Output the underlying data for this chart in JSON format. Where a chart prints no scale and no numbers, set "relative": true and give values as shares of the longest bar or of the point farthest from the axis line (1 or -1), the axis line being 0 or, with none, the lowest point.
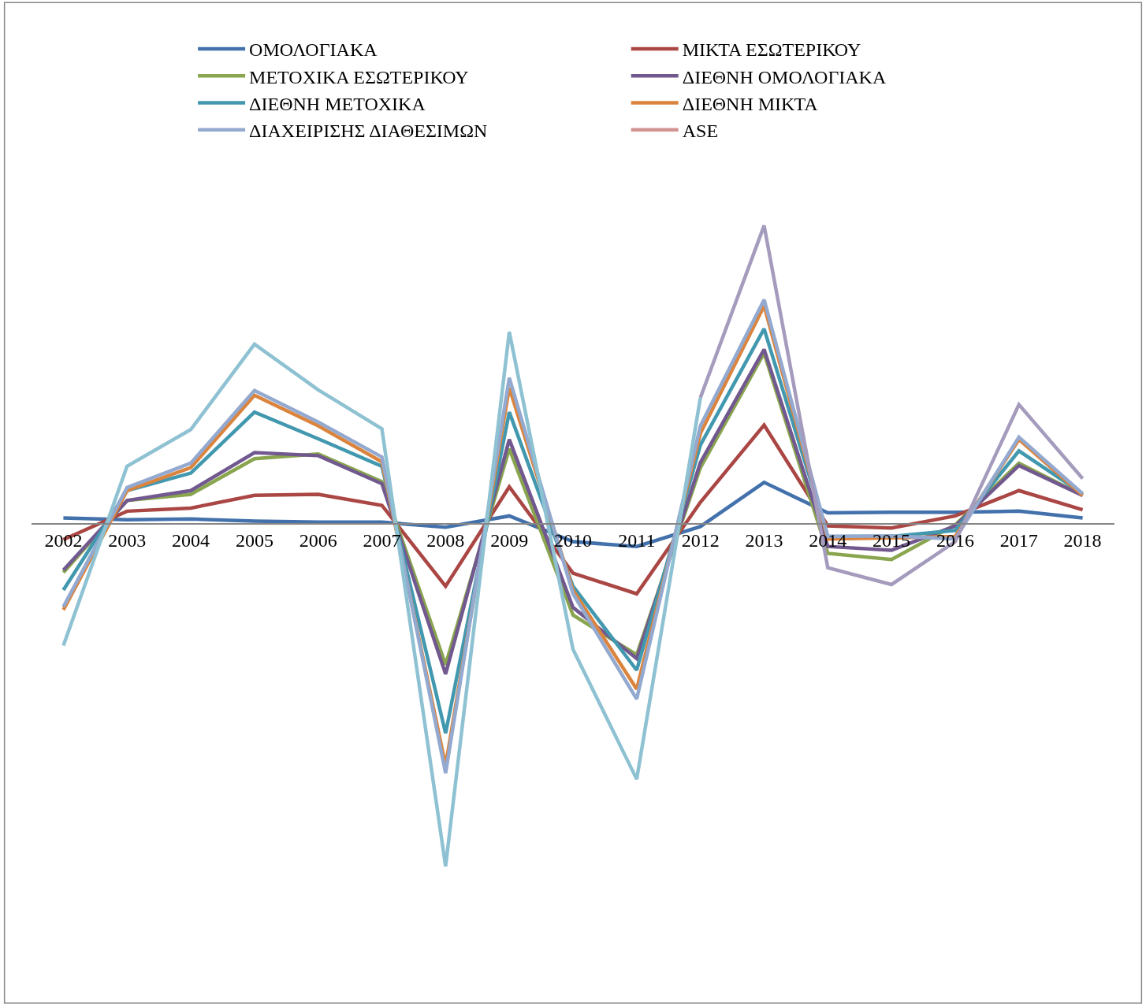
{
  "chart_data": {
    "type": "line",
    "relative": true,
    "legend": "top",
    "marker": "none",
    "line_style": "solid",
    "categories": [
      "2002",
      "2003",
      "2004",
      "2005",
      "2006",
      "2007",
      "2008",
      "2009",
      "2010",
      "2011",
      "2012",
      "2013",
      "2014",
      "2015",
      "2016",
      "2017",
      "2018"
    ],
    "series": [
      {
        "name": "ΟΜΟΛΟΓΙΑΚΑ",
        "color": "#4271ab",
        "values": [
          0.016,
          0.011,
          0.013,
          0.007,
          0.004,
          0.004,
          -0.011,
          0.022,
          -0.053,
          -0.067,
          -0.009,
          0.12,
          0.031,
          0.033,
          0.033,
          0.036,
          0.016
        ]
      },
      {
        "name": "ΜΙΚΤΑ ΕΣΩΤΕΡΙΚΟΥ",
        "color": "#aa4643",
        "values": [
          -0.047,
          0.036,
          0.045,
          0.082,
          0.085,
          0.053,
          -0.183,
          0.107,
          -0.145,
          -0.205,
          0.062,
          0.287,
          -0.007,
          -0.013,
          0.022,
          0.096,
          0.04
        ]
      },
      {
        "name": "ΜΕΤΟΧΙΚΑ ΕΣΩΤΕΡΙΚΟΥ",
        "color": "#89a54e",
        "values": [
          -0.143,
          0.067,
          0.085,
          0.189,
          0.203,
          0.122,
          -0.412,
          0.218,
          -0.267,
          -0.383,
          0.163,
          0.497,
          -0.087,
          -0.105,
          -0.004,
          0.176,
          0.082
        ]
      },
      {
        "name": "ΔΙΕΘΝΗ ΟΜΟΛΟΓΙΑΚΑ",
        "color": "#71588f",
        "values": [
          -0.136,
          0.067,
          0.096,
          0.207,
          0.198,
          0.116,
          -0.439,
          0.245,
          -0.245,
          -0.394,
          0.178,
          0.508,
          -0.067,
          -0.078,
          -0.007,
          0.169,
          0.082
        ]
      },
      {
        "name": "ΔΙΕΘΝΗ ΜΕΤΟΧΙΚΑ",
        "color": "#4198af",
        "values": [
          -0.194,
          0.096,
          0.147,
          0.325,
          0.247,
          0.167,
          -0.612,
          0.325,
          -0.183,
          -0.428,
          0.229,
          0.568,
          -0.038,
          -0.038,
          -0.02,
          0.212,
          0.087
        ]
      },
      {
        "name": "ΔΙΕΘΝΗ ΜΙΚΤΑ",
        "color": "#db843d",
        "values": [
          -0.252,
          0.096,
          0.163,
          0.374,
          0.285,
          0.18,
          -0.706,
          0.396,
          -0.194,
          -0.483,
          0.263,
          0.635,
          -0.045,
          -0.042,
          -0.038,
          0.245,
          0.082
        ]
      },
      {
        "name": "ΔΙΑΧΕΙΡΙΣΗΣ ΔΙΑΘΕΣΙΜΩΝ",
        "color": "#93a9cf",
        "values": [
          -0.243,
          0.105,
          0.176,
          0.388,
          0.296,
          0.194,
          -0.728,
          0.425,
          -0.205,
          -0.512,
          0.285,
          0.653,
          -0.038,
          -0.036,
          -0.045,
          0.252,
          0.087
        ]
      },
      {
        "name": "ASE",
        "color": "#d19392",
        "values": [
          null,
          null,
          null,
          null,
          null,
          null,
          null,
          null,
          null,
          null,
          null,
          null,
          null,
          null,
          null,
          null,
          null
        ]
      },
      {
        "color": "#8ec2d3",
        "values": [
          -0.356,
          0.167,
          0.274,
          0.523,
          0.39,
          0.276,
          -1,
          0.559,
          -0.367,
          -0.746,
          0.367,
          null,
          null,
          null,
          null,
          null,
          null
        ]
      },
      {
        "color": "#a59bbd",
        "values": [
          null,
          null,
          null,
          null,
          null,
          null,
          null,
          null,
          null,
          null,
          0.367,
          0.869,
          -0.129,
          -0.178,
          -0.053,
          0.347,
          0.131
        ]
      }
    ]
  }
}
